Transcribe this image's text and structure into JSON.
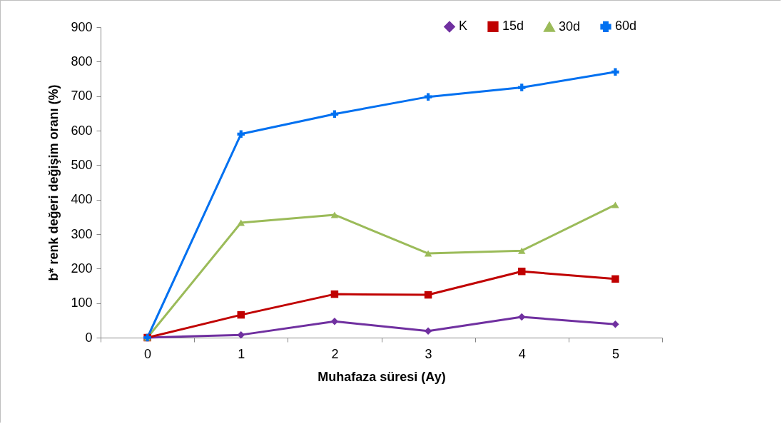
{
  "chart_data": {
    "type": "line",
    "xlabel": "Muhafaza süresi (Ay)",
    "ylabel": "b* renk değeri değişim oranı (%)",
    "categories": [
      "0",
      "1",
      "2",
      "3",
      "4",
      "5"
    ],
    "series": [
      {
        "name": "K",
        "color": "#7030a0",
        "marker": "diamond",
        "values": [
          0,
          8,
          47,
          19,
          60,
          39
        ]
      },
      {
        "name": "15d",
        "color": "#c00000",
        "marker": "square",
        "values": [
          0,
          66,
          126,
          124,
          192,
          170
        ]
      },
      {
        "name": "30d",
        "color": "#9bbb59",
        "marker": "triangle",
        "values": [
          0,
          333,
          356,
          244,
          252,
          385
        ]
      },
      {
        "name": "60d",
        "color": "#0070f0",
        "marker": "cross",
        "values": [
          0,
          590,
          648,
          698,
          725,
          770
        ]
      }
    ],
    "ylim": [
      0,
      900
    ],
    "yticks": [
      0,
      100,
      200,
      300,
      400,
      500,
      600,
      700,
      800,
      900
    ],
    "grid": false,
    "legend": "top right"
  }
}
